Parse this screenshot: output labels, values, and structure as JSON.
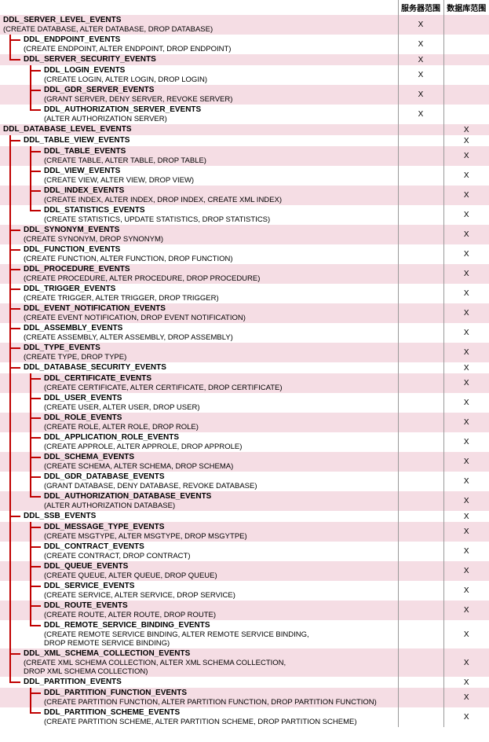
{
  "headers": {
    "col1": "服务器范围",
    "col2": "数据库范围"
  },
  "colors": {
    "connector": "#c00000",
    "stripe_alt": "#f5dde4"
  },
  "rows": [
    {
      "indent": 0,
      "title": "DDL_SERVER_LEVEL_EVENTS",
      "sub": "(CREATE DATABASE, ALTER DATABASE, DROP DATABASE)",
      "c1": "X",
      "c2": "",
      "conns": [],
      "last": false
    },
    {
      "indent": 1,
      "title": "DDL_ENDPOINT_EVENTS",
      "sub": "(CREATE ENDPOINT, ALTER ENDPOINT, DROP ENDPOINT)",
      "c1": "X",
      "c2": "",
      "conns": [
        "tee"
      ],
      "last": false
    },
    {
      "indent": 1,
      "title": "DDL_SERVER_SECURITY_EVENTS",
      "sub": "",
      "c1": "X",
      "c2": "",
      "conns": [
        "L"
      ],
      "last": true
    },
    {
      "indent": 2,
      "title": "DDL_LOGIN_EVENTS",
      "sub": "(CREATE LOGIN, ALTER LOGIN, DROP LOGIN)",
      "c1": "X",
      "c2": "",
      "conns": [
        "",
        "tee"
      ],
      "last": false
    },
    {
      "indent": 2,
      "title": "DDL_GDR_SERVER_EVENTS",
      "sub": "(GRANT SERVER, DENY SERVER, REVOKE SERVER)",
      "c1": "X",
      "c2": "",
      "conns": [
        "",
        "tee"
      ],
      "last": false
    },
    {
      "indent": 2,
      "title": "DDL_AUTHORIZATION_SERVER_EVENTS",
      "sub": "(ALTER AUTHORIZATION SERVER)",
      "c1": "X",
      "c2": "",
      "conns": [
        "",
        "L"
      ],
      "last": true
    },
    {
      "indent": 0,
      "title": "DDL_DATABASE_LEVEL_EVENTS",
      "sub": "",
      "c1": "",
      "c2": "X",
      "conns": [],
      "last": false
    },
    {
      "indent": 1,
      "title": "DDL_TABLE_VIEW_EVENTS",
      "sub": "",
      "c1": "",
      "c2": "X",
      "conns": [
        "tee"
      ],
      "last": false
    },
    {
      "indent": 2,
      "title": "DDL_TABLE_EVENTS",
      "sub": "(CREATE TABLE, ALTER TABLE, DROP TABLE)",
      "c1": "",
      "c2": "X",
      "conns": [
        "|",
        "tee"
      ],
      "last": false
    },
    {
      "indent": 2,
      "title": "DDL_VIEW_EVENTS",
      "sub": "(CREATE VIEW, ALTER VIEW, DROP VIEW)",
      "c1": "",
      "c2": "X",
      "conns": [
        "|",
        "tee"
      ],
      "last": false
    },
    {
      "indent": 2,
      "title": "DDL_INDEX_EVENTS",
      "sub": "(CREATE INDEX, ALTER INDEX, DROP INDEX, CREATE XML INDEX)",
      "c1": "",
      "c2": "X",
      "conns": [
        "|",
        "tee"
      ],
      "last": false
    },
    {
      "indent": 2,
      "title": "DDL_STATISTICS_EVENTS",
      "sub": "(CREATE STATISTICS, UPDATE STATISTICS, DROP STATISTICS)",
      "c1": "",
      "c2": "X",
      "conns": [
        "|",
        "L"
      ],
      "last": true
    },
    {
      "indent": 1,
      "title": "DDL_SYNONYM_EVENTS",
      "sub": "(CREATE SYNONYM, DROP SYNONYM)",
      "c1": "",
      "c2": "X",
      "conns": [
        "tee"
      ],
      "last": false
    },
    {
      "indent": 1,
      "title": "DDL_FUNCTION_EVENTS",
      "sub": "(CREATE FUNCTION, ALTER FUNCTION, DROP FUNCTION)",
      "c1": "",
      "c2": "X",
      "conns": [
        "tee"
      ],
      "last": false
    },
    {
      "indent": 1,
      "title": "DDL_PROCEDURE_EVENTS",
      "sub": "(CREATE PROCEDURE, ALTER PROCEDURE, DROP PROCEDURE)",
      "c1": "",
      "c2": "X",
      "conns": [
        "tee"
      ],
      "last": false
    },
    {
      "indent": 1,
      "title": "DDL_TRIGGER_EVENTS",
      "sub": "(CREATE TRIGGER, ALTER TRIGGER, DROP TRIGGER)",
      "c1": "",
      "c2": "X",
      "conns": [
        "tee"
      ],
      "last": false
    },
    {
      "indent": 1,
      "title": "DDL_EVENT_NOTIFICATION_EVENTS",
      "sub": "(CREATE EVENT NOTIFICATION, DROP EVENT NOTIFICATION)",
      "c1": "",
      "c2": "X",
      "conns": [
        "tee"
      ],
      "last": false
    },
    {
      "indent": 1,
      "title": "DDL_ASSEMBLY_EVENTS",
      "sub": "(CREATE ASSEMBLY, ALTER ASSEMBLY, DROP ASSEMBLY)",
      "c1": "",
      "c2": "X",
      "conns": [
        "tee"
      ],
      "last": false
    },
    {
      "indent": 1,
      "title": "DDL_TYPE_EVENTS",
      "sub": "(CREATE TYPE, DROP TYPE)",
      "c1": "",
      "c2": "X",
      "conns": [
        "tee"
      ],
      "last": false
    },
    {
      "indent": 1,
      "title": "DDL_DATABASE_SECURITY_EVENTS",
      "sub": "",
      "c1": "",
      "c2": "X",
      "conns": [
        "tee"
      ],
      "last": false
    },
    {
      "indent": 2,
      "title": "DDL_CERTIFICATE_EVENTS",
      "sub": "(CREATE CERTIFICATE, ALTER CERTIFICATE, DROP CERTIFICATE)",
      "c1": "",
      "c2": "X",
      "conns": [
        "|",
        "tee"
      ],
      "last": false
    },
    {
      "indent": 2,
      "title": "DDL_USER_EVENTS",
      "sub": "(CREATE USER, ALTER USER, DROP USER)",
      "c1": "",
      "c2": "X",
      "conns": [
        "|",
        "tee"
      ],
      "last": false
    },
    {
      "indent": 2,
      "title": "DDL_ROLE_EVENTS",
      "sub": "(CREATE ROLE, ALTER ROLE, DROP ROLE)",
      "c1": "",
      "c2": "X",
      "conns": [
        "|",
        "tee"
      ],
      "last": false
    },
    {
      "indent": 2,
      "title": "DDL_APPLICATION_ROLE_EVENTS",
      "sub": "(CREATE APPROLE, ALTER APPROLE, DROP APPROLE)",
      "c1": "",
      "c2": "X",
      "conns": [
        "|",
        "tee"
      ],
      "last": false
    },
    {
      "indent": 2,
      "title": "DDL_SCHEMA_EVENTS",
      "sub": "(CREATE SCHEMA, ALTER SCHEMA, DROP SCHEMA)",
      "c1": "",
      "c2": "X",
      "conns": [
        "|",
        "tee"
      ],
      "last": false
    },
    {
      "indent": 2,
      "title": "DDL_GDR_DATABASE_EVENTS",
      "sub": "(GRANT DATABASE, DENY DATABASE, REVOKE DATABASE)",
      "c1": "",
      "c2": "X",
      "conns": [
        "|",
        "tee"
      ],
      "last": false
    },
    {
      "indent": 2,
      "title": "DDL_AUTHORIZATION_DATABASE_EVENTS",
      "sub": "(ALTER AUTHORIZATION DATABASE)",
      "c1": "",
      "c2": "X",
      "conns": [
        "|",
        "L"
      ],
      "last": true
    },
    {
      "indent": 1,
      "title": "DDL_SSB_EVENTS",
      "sub": "",
      "c1": "",
      "c2": "X",
      "conns": [
        "tee"
      ],
      "last": false
    },
    {
      "indent": 2,
      "title": "DDL_MESSAGE_TYPE_EVENTS",
      "sub": "(CREATE MSGTYPE, ALTER MSGTYPE, DROP MSGYTPE)",
      "c1": "",
      "c2": "X",
      "conns": [
        "|",
        "tee"
      ],
      "last": false
    },
    {
      "indent": 2,
      "title": "DDL_CONTRACT_EVENTS",
      "sub": "(CREATE CONTRACT, DROP CONTRACT)",
      "c1": "",
      "c2": "X",
      "conns": [
        "|",
        "tee"
      ],
      "last": false
    },
    {
      "indent": 2,
      "title": "DDL_QUEUE_EVENTS",
      "sub": "(CREATE QUEUE, ALTER QUEUE, DROP QUEUE)",
      "c1": "",
      "c2": "X",
      "conns": [
        "|",
        "tee"
      ],
      "last": false
    },
    {
      "indent": 2,
      "title": "DDL_SERVICE_EVENTS",
      "sub": "(CREATE SERVICE, ALTER SERVICE, DROP SERVICE)",
      "c1": "",
      "c2": "X",
      "conns": [
        "|",
        "tee"
      ],
      "last": false
    },
    {
      "indent": 2,
      "title": "DDL_ROUTE_EVENTS",
      "sub": "(CREATE ROUTE, ALTER ROUTE, DROP ROUTE)",
      "c1": "",
      "c2": "X",
      "conns": [
        "|",
        "tee"
      ],
      "last": false
    },
    {
      "indent": 2,
      "title": "DDL_REMOTE_SERVICE_BINDING_EVENTS",
      "sub": "(CREATE REMOTE SERVICE BINDING, ALTER REMOTE SERVICE BINDING,\n DROP REMOTE SERVICE BINDING)",
      "c1": "",
      "c2": "X",
      "conns": [
        "|",
        "L"
      ],
      "last": true
    },
    {
      "indent": 1,
      "title": "DDL_XML_SCHEMA_COLLECTION_EVENTS",
      "sub": "(CREATE XML SCHEMA COLLECTION, ALTER XML SCHEMA COLLECTION,\n DROP XML SCHEMA COLLECTION)",
      "c1": "",
      "c2": "X",
      "conns": [
        "tee"
      ],
      "last": false
    },
    {
      "indent": 1,
      "title": "DDL_PARTITION_EVENTS",
      "sub": "",
      "c1": "",
      "c2": "X",
      "conns": [
        "L"
      ],
      "last": true
    },
    {
      "indent": 2,
      "title": "DDL_PARTITION_FUNCTION_EVENTS",
      "sub": "(CREATE PARTITION FUNCTION, ALTER PARTITION FUNCTION, DROP PARTITION FUNCTION)",
      "c1": "",
      "c2": "X",
      "conns": [
        "",
        "tee"
      ],
      "last": false
    },
    {
      "indent": 2,
      "title": "DDL_PARTITION_SCHEME_EVENTS",
      "sub": "(CREATE PARTITION SCHEME, ALTER PARTITION SCHEME, DROP PARTITION SCHEME)",
      "c1": "",
      "c2": "X",
      "conns": [
        "",
        "L"
      ],
      "last": true
    }
  ]
}
